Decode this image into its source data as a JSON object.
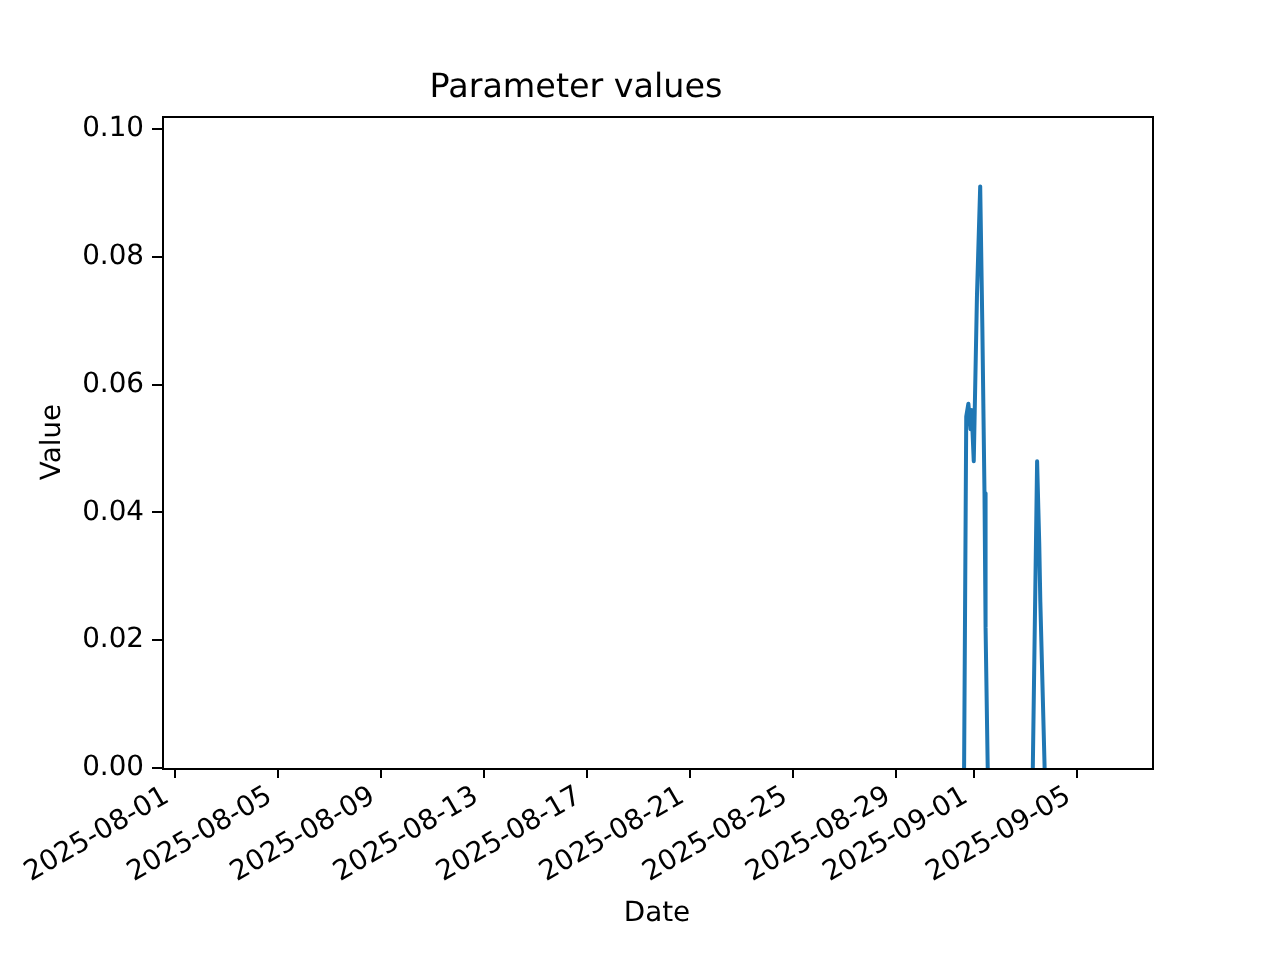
{
  "chart_data": {
    "type": "line",
    "title": "Parameter values",
    "xlabel": "Date",
    "ylabel": "Value",
    "x": [
      "2025-08-31T15:00",
      "2025-08-31T17:00",
      "2025-08-31T19:00",
      "2025-08-31T21:00",
      "2025-08-31T22:00",
      "2025-09-01T00:00",
      "2025-09-01T03:00",
      "2025-09-01T06:00",
      "2025-09-01T08:00",
      "2025-09-01T10:00",
      "2025-09-01T11:00",
      "2025-09-01T13:00",
      "2025-09-02T12:00",
      "2025-09-03T07:00",
      "2025-09-03T11:00",
      "2025-09-03T13:00",
      "2025-09-03T14:00",
      "2025-09-03T18:00"
    ],
    "values": [
      0,
      0.055,
      0.057,
      0.053,
      0.056,
      0.048,
      0.074,
      0.091,
      0.069,
      0.043,
      0.022,
      0,
      null,
      0,
      0.048,
      0.035,
      0.026,
      0
    ],
    "color": "#1f77b4",
    "marker": "none",
    "xlim": [
      "2025-07-31T12:00",
      "2025-09-07T22:00"
    ],
    "xticks": [
      "2025-08-01",
      "2025-08-05",
      "2025-08-09",
      "2025-08-13",
      "2025-08-17",
      "2025-08-21",
      "2025-08-25",
      "2025-08-29",
      "2025-09-01",
      "2025-09-05"
    ],
    "ylim": [
      0,
      0.102
    ],
    "yticks": [
      {
        "value": 0,
        "label": "0.00"
      },
      {
        "value": 0.02,
        "label": "0.02"
      },
      {
        "value": 0.04,
        "label": "0.04"
      },
      {
        "value": 0.06,
        "label": "0.06"
      },
      {
        "value": 0.08,
        "label": "0.08"
      },
      {
        "value": 0.1,
        "label": "0.10"
      }
    ],
    "grid": false
  }
}
